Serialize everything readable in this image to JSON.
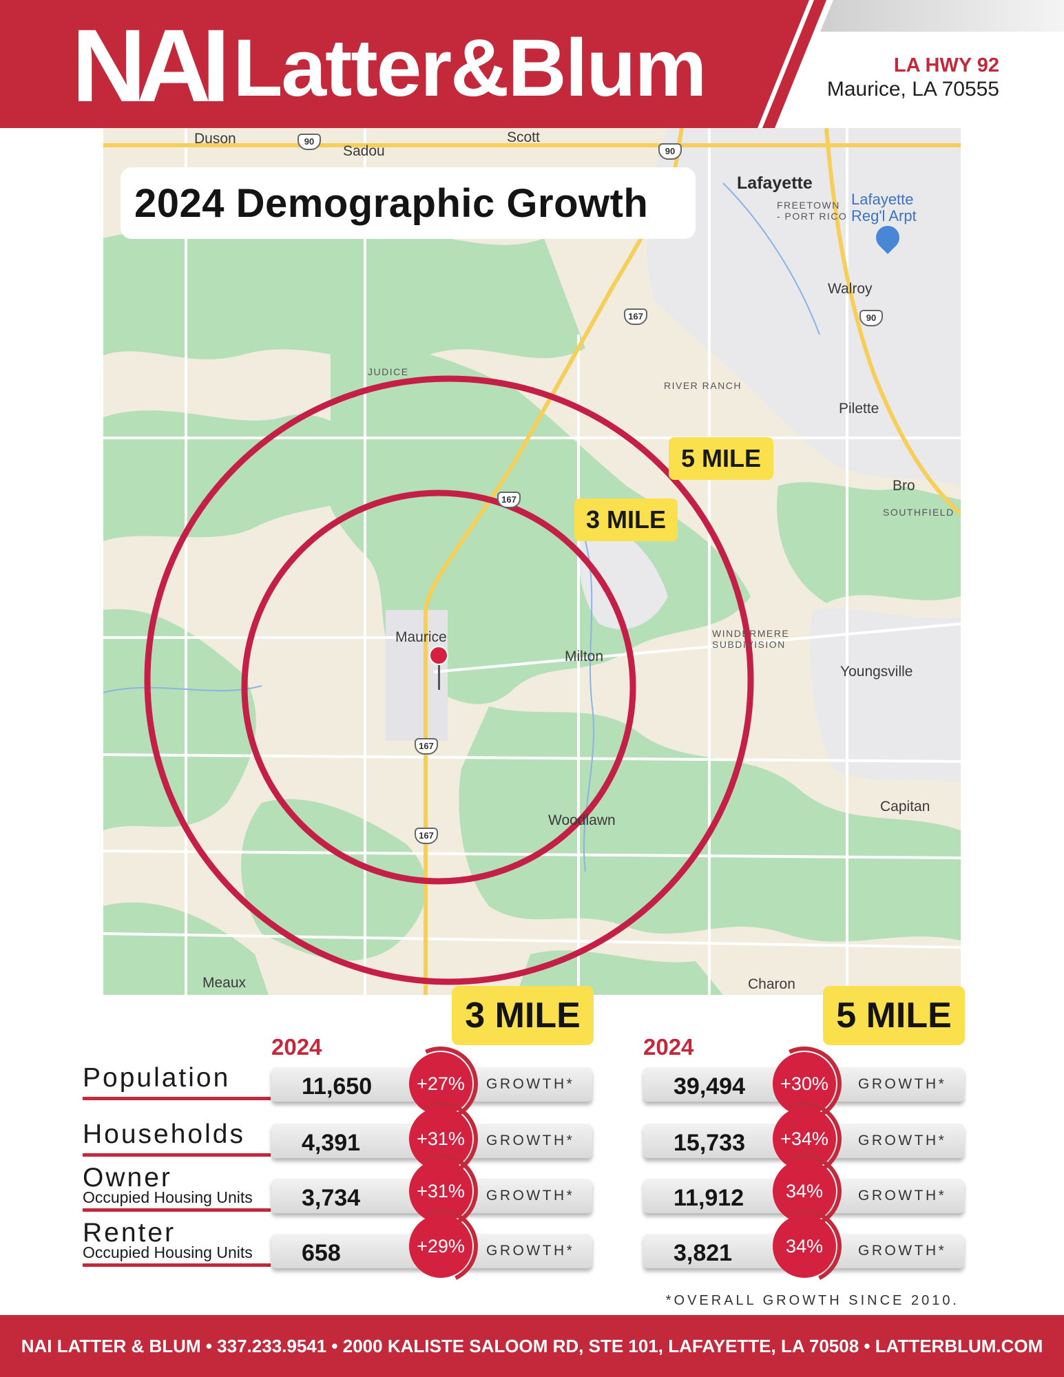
{
  "header": {
    "logo_nai": "NAI",
    "logo_rest": "Latter&Blum",
    "address_line1": "LA HWY 92",
    "address_line2": "Maurice, LA 70555",
    "brand_color": "#c3293b"
  },
  "map": {
    "title": "2024 Demographic Growth",
    "ring_labels": {
      "five": "5 MILE",
      "three": "3 MILE"
    },
    "places": {
      "duson": "Duson",
      "sadou": "Sadou",
      "scott": "Scott",
      "lafayette": "Lafayette",
      "freetown": "FREETOWN\n- PORT RICO",
      "airport": "Lafayette\nReg'l Arpt",
      "walroy": "Walroy",
      "judice": "JUDICE",
      "river_ranch": "RIVER RANCH",
      "pilette": "Pilette",
      "bro": "Bro",
      "southfield": "SOUTHFIELD",
      "maurice": "Maurice",
      "milton": "Milton",
      "windermere": "WINDERMERE\nSUBDIVISION",
      "youngsville": "Youngsville",
      "capitan": "Capitan",
      "woodlawn": "Woodlawn",
      "meaux": "Meaux",
      "charon": "Charon"
    },
    "highway_shields": {
      "hwy90": "90",
      "hwy167": "167"
    },
    "icons": [
      "map-pin-icon",
      "airport-icon"
    ]
  },
  "stats": {
    "growth_word": "GROWTH*",
    "footnote": "*OVERALL GROWTH SINCE 2010.",
    "row_labels": [
      {
        "big": "Population",
        "sub": ""
      },
      {
        "big": "Households",
        "sub": ""
      },
      {
        "big": "Owner",
        "sub": "Occupied Housing Units"
      },
      {
        "big": "Renter",
        "sub": "Occupied Housing Units"
      }
    ],
    "three_mile": {
      "heading": "3 MILE",
      "year": "2024",
      "rows": [
        {
          "value": "11,650",
          "growth": "+27%"
        },
        {
          "value": "4,391",
          "growth": "+31%"
        },
        {
          "value": "3,734",
          "growth": "+31%"
        },
        {
          "value": "658",
          "growth": "+29%"
        }
      ]
    },
    "five_mile": {
      "heading": "5 MILE",
      "year": "2024",
      "rows": [
        {
          "value": "39,494",
          "growth": "+30%"
        },
        {
          "value": "15,733",
          "growth": "+34%"
        },
        {
          "value": "11,912",
          "growth": "34%"
        },
        {
          "value": "3,821",
          "growth": "34%"
        }
      ]
    }
  },
  "footer": {
    "text": "NAI LATTER & BLUM • 337.233.9541 • 2000 KALISTE SALOOM RD, STE 101, LAFAYETTE, LA 70508 • LATTERBLUM.COM"
  }
}
